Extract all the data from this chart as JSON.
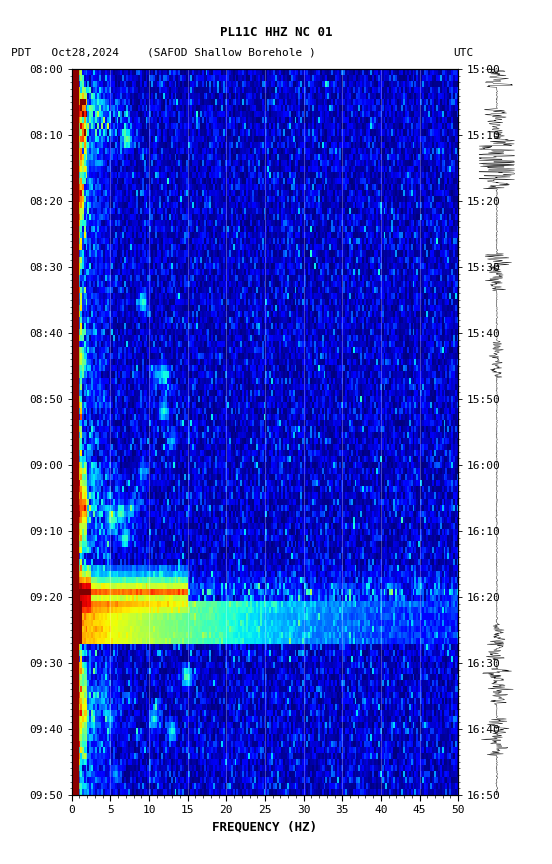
{
  "title_line1": "PL11C HHZ NC 01",
  "title_line2_left": "PDT   Oct28,2024",
  "title_line2_center": "(SAFOD Shallow Borehole )",
  "title_line2_right": "UTC",
  "xlabel": "FREQUENCY (HZ)",
  "ylabel_left": "",
  "yticks_left": [
    "08:00",
    "08:10",
    "08:20",
    "08:30",
    "08:40",
    "08:50",
    "09:00",
    "09:10",
    "09:20",
    "09:30",
    "09:40",
    "09:50"
  ],
  "yticks_right": [
    "15:00",
    "15:10",
    "15:20",
    "15:30",
    "15:40",
    "15:50",
    "16:00",
    "16:10",
    "16:20",
    "16:30",
    "16:40",
    "16:50"
  ],
  "xticks": [
    0,
    5,
    10,
    15,
    20,
    25,
    30,
    35,
    40,
    45,
    50
  ],
  "freq_min": 0,
  "freq_max": 50,
  "time_steps": 120,
  "freq_steps": 200,
  "background_color": "#ffffff",
  "spectrogram_cmap": "jet",
  "dark_red_strip_color": "#8b0000",
  "figure_width": 5.52,
  "figure_height": 8.64
}
